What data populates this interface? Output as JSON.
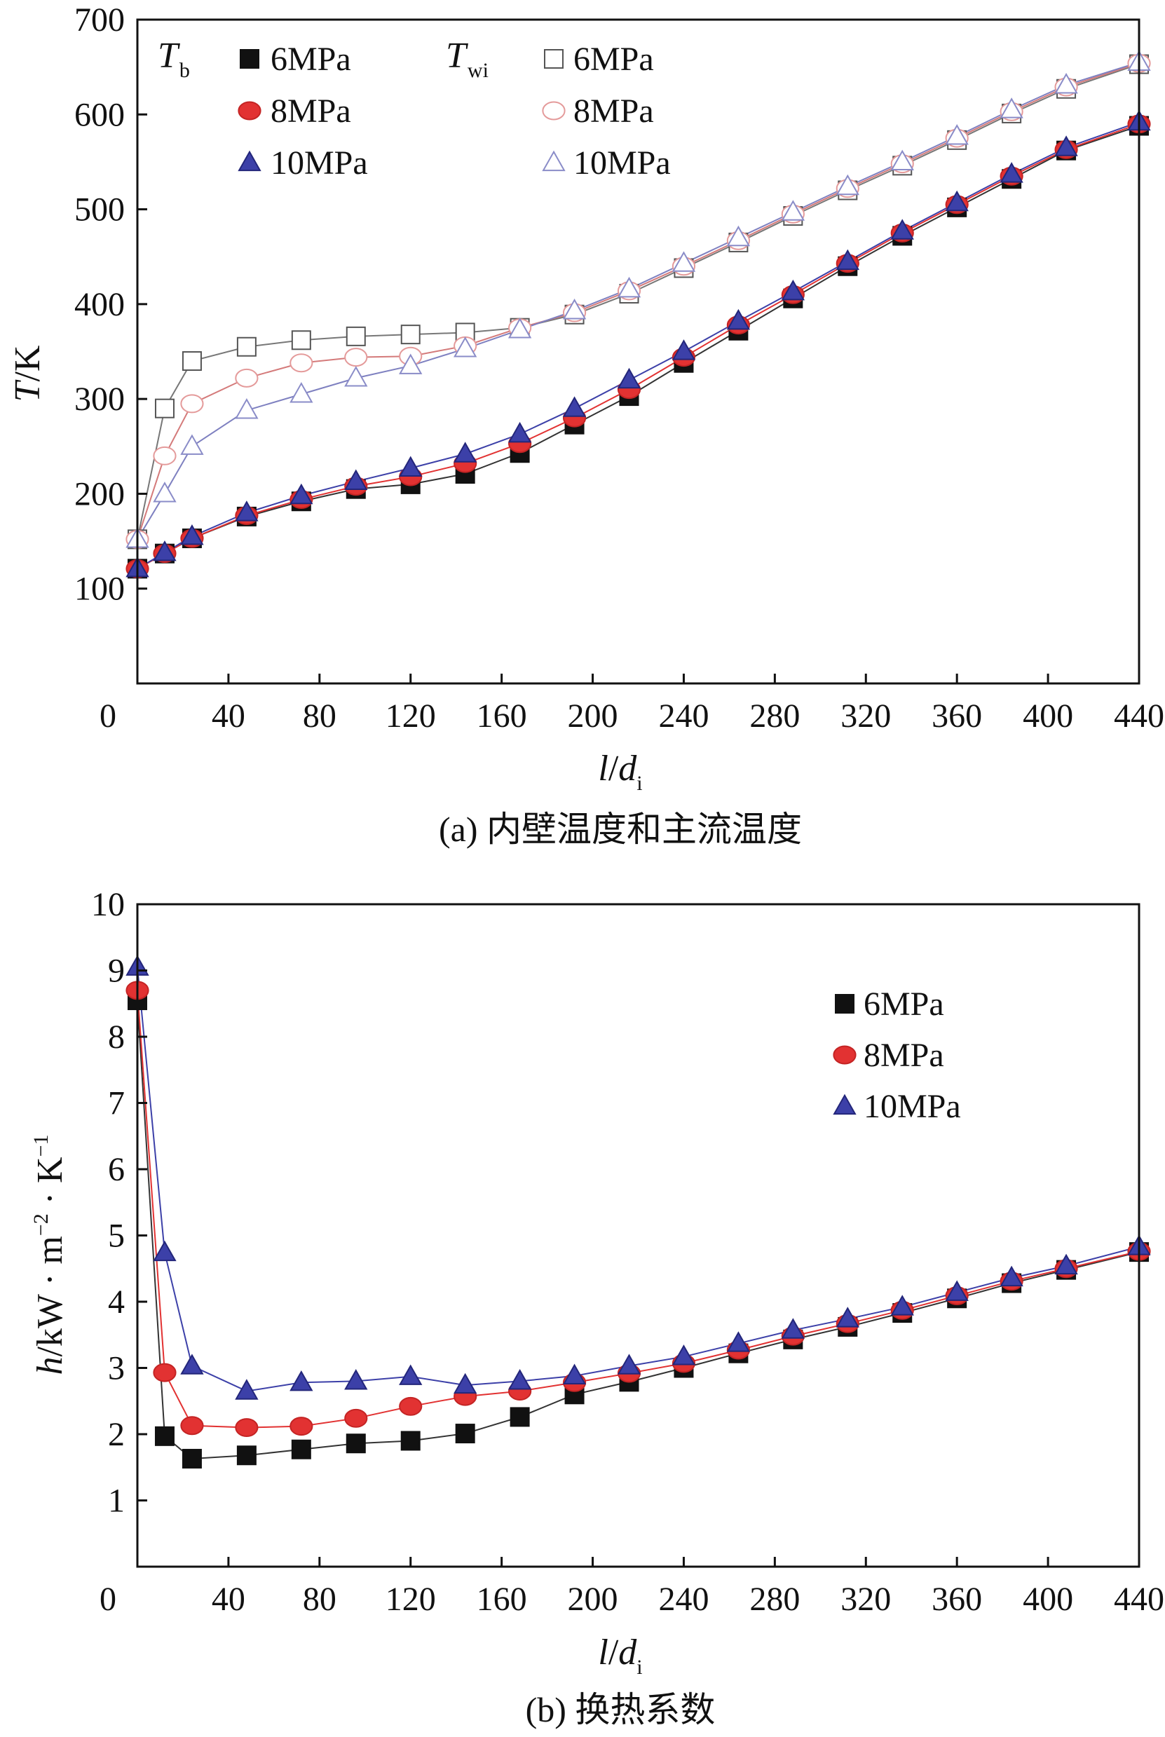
{
  "colors": {
    "6MPa": "#111111",
    "8MPa": "#e23232",
    "10MPa": "#3c40a8"
  },
  "chart_data": [
    {
      "type": "line",
      "panel": "a",
      "caption": "(a) 内壁温度和主流温度",
      "ylabel": {
        "sym": "T",
        "rest": "/K"
      },
      "xlabel": {
        "l": "l",
        "sep": "/",
        "d": "d",
        "sub": "i"
      },
      "xlim": [
        0,
        440
      ],
      "ylim": [
        0,
        700
      ],
      "xticks": [
        0,
        40,
        80,
        120,
        160,
        200,
        240,
        280,
        320,
        360,
        400,
        440
      ],
      "yticks": [
        0,
        100,
        200,
        300,
        400,
        500,
        600,
        700
      ],
      "legend_groups": [
        {
          "symbol": "T",
          "sub": "b"
        },
        {
          "symbol": "T",
          "sub": "wi"
        }
      ],
      "legend_labels": [
        "6MPa",
        "8MPa",
        "10MPa"
      ],
      "x": [
        0,
        12,
        24,
        48,
        72,
        96,
        120,
        144,
        168,
        192,
        216,
        240,
        264,
        288,
        312,
        336,
        360,
        384,
        408,
        440
      ],
      "series": [
        {
          "name": "6MPa",
          "group": "Tb",
          "marker": "square",
          "filled": true,
          "values": [
            121,
            137,
            153,
            176,
            192,
            205,
            210,
            221,
            243,
            273,
            303,
            338,
            372,
            406,
            440,
            472,
            502,
            532,
            562,
            588
          ]
        },
        {
          "name": "8MPa",
          "group": "Tb",
          "marker": "circle",
          "filled": true,
          "values": [
            121,
            137,
            153,
            177,
            194,
            208,
            218,
            232,
            253,
            280,
            310,
            344,
            378,
            410,
            443,
            475,
            505,
            535,
            563,
            590
          ]
        },
        {
          "name": "10MPa",
          "group": "Tb",
          "marker": "triangle",
          "filled": true,
          "values": [
            121,
            138,
            155,
            180,
            198,
            213,
            227,
            242,
            263,
            290,
            320,
            350,
            382,
            413,
            445,
            477,
            507,
            537,
            565,
            592
          ]
        },
        {
          "name": "6MPa",
          "group": "Twi",
          "marker": "square",
          "filled": false,
          "values": [
            152,
            290,
            340,
            355,
            362,
            366,
            368,
            370,
            375,
            389,
            411,
            438,
            465,
            493,
            520,
            546,
            573,
            601,
            627,
            653
          ]
        },
        {
          "name": "8MPa",
          "group": "Twi",
          "marker": "circle",
          "filled": false,
          "values": [
            152,
            240,
            295,
            322,
            338,
            344,
            345,
            356,
            375,
            391,
            414,
            440,
            467,
            495,
            522,
            548,
            575,
            603,
            629,
            654
          ]
        },
        {
          "name": "10MPa",
          "group": "Twi",
          "marker": "triangle",
          "filled": false,
          "values": [
            152,
            200,
            250,
            288,
            305,
            322,
            335,
            353,
            373,
            393,
            416,
            443,
            470,
            497,
            524,
            550,
            577,
            605,
            631,
            655
          ]
        }
      ]
    },
    {
      "type": "line",
      "panel": "b",
      "caption": "(b) 换热系数",
      "ylabel": {
        "sym": "h",
        "rest": "/kW · m",
        "sup1": "−2",
        "mid": " · K",
        "sup2": "−1"
      },
      "xlabel": {
        "l": "l",
        "sep": "/",
        "d": "d",
        "sub": "i"
      },
      "xlim": [
        0,
        440
      ],
      "ylim": [
        0,
        10
      ],
      "xticks": [
        0,
        40,
        80,
        120,
        160,
        200,
        240,
        280,
        320,
        360,
        400,
        440
      ],
      "yticks": [
        0,
        1,
        2,
        3,
        4,
        5,
        6,
        7,
        8,
        9,
        10
      ],
      "legend_labels": [
        "6MPa",
        "8MPa",
        "10MPa"
      ],
      "x": [
        0,
        12,
        24,
        48,
        72,
        96,
        120,
        144,
        168,
        192,
        216,
        240,
        264,
        288,
        312,
        336,
        360,
        384,
        408,
        440
      ],
      "series": [
        {
          "name": "6MPa",
          "marker": "square",
          "filled": true,
          "values": [
            8.55,
            1.97,
            1.63,
            1.68,
            1.77,
            1.86,
            1.9,
            2.01,
            2.26,
            2.6,
            2.79,
            3.0,
            3.22,
            3.43,
            3.62,
            3.83,
            4.05,
            4.28,
            4.48,
            4.75
          ]
        },
        {
          "name": "8MPa",
          "marker": "circle",
          "filled": true,
          "values": [
            8.7,
            2.93,
            2.13,
            2.1,
            2.12,
            2.24,
            2.42,
            2.57,
            2.65,
            2.78,
            2.92,
            3.07,
            3.27,
            3.48,
            3.67,
            3.87,
            4.09,
            4.31,
            4.5,
            4.76
          ]
        },
        {
          "name": "10MPa",
          "marker": "triangle",
          "filled": true,
          "values": [
            9.05,
            4.74,
            3.03,
            2.65,
            2.78,
            2.8,
            2.87,
            2.74,
            2.8,
            2.88,
            3.03,
            3.17,
            3.37,
            3.57,
            3.74,
            3.92,
            4.14,
            4.36,
            4.54,
            4.83
          ]
        }
      ]
    }
  ]
}
